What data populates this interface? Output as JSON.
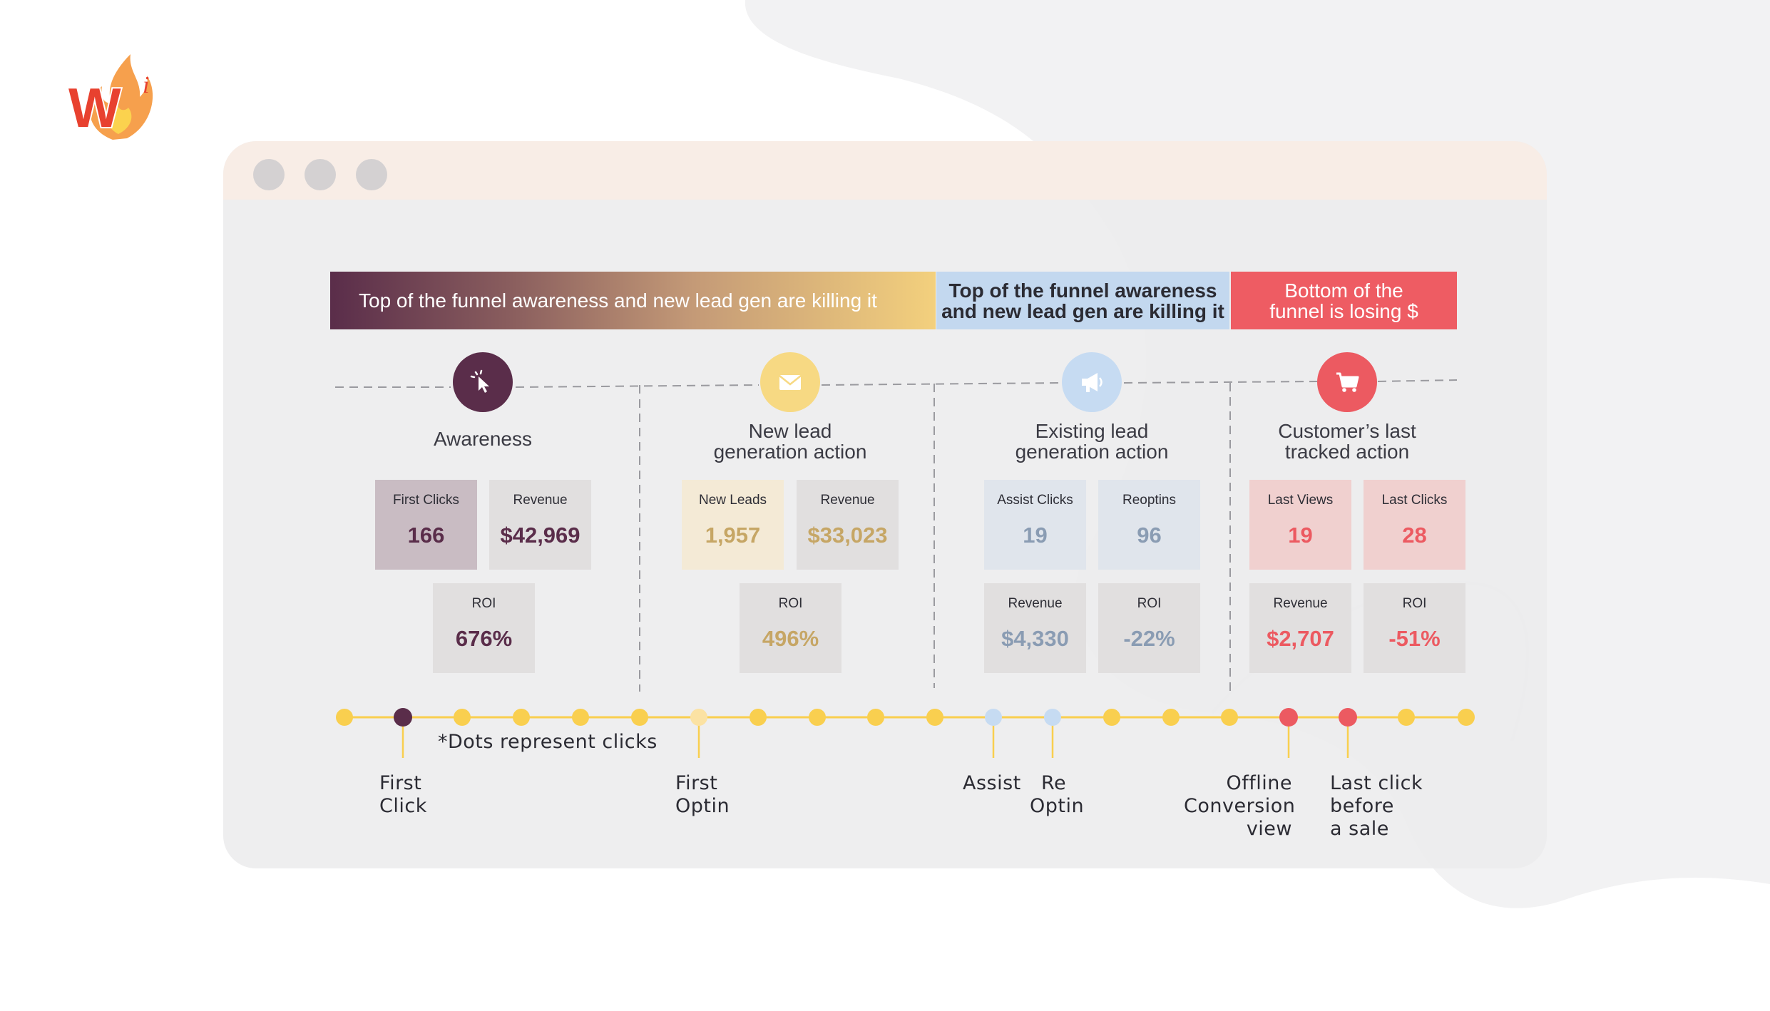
{
  "colors": {
    "awareness": "#5a2d4a",
    "new_lead": "#f7d983",
    "existing_lead": "#c6dbf2",
    "last_action": "#ec5a61",
    "timeline": "#f9cf4f"
  },
  "banners": {
    "left": "Top of the funnel awareness and new lead gen are killing it",
    "middle_line1": "Top of the funnel awareness",
    "middle_line2": "and new lead gen are killing it",
    "right_line1": "Bottom of the",
    "right_line2": "funnel is losing $"
  },
  "stages": [
    {
      "icon": "cursor-click-icon",
      "title_line1": "Awareness",
      "title_line2": "",
      "metrics": [
        {
          "label": "First Clicks",
          "value": "166"
        },
        {
          "label": "Revenue",
          "value": "$42,969"
        },
        {
          "label": "ROI",
          "value": "676%"
        }
      ]
    },
    {
      "icon": "envelope-icon",
      "title_line1": "New lead",
      "title_line2": "generation action",
      "metrics": [
        {
          "label": "New Leads",
          "value": "1,957"
        },
        {
          "label": "Revenue",
          "value": "$33,023"
        },
        {
          "label": "ROI",
          "value": "496%"
        }
      ]
    },
    {
      "icon": "megaphone-icon",
      "title_line1": "Existing lead",
      "title_line2": "generation action",
      "metrics": [
        {
          "label": "Assist Clicks",
          "value": "19"
        },
        {
          "label": "Reoptins",
          "value": "96"
        },
        {
          "label": "Revenue",
          "value": "$4,330"
        },
        {
          "label": "ROI",
          "value": "-22%"
        }
      ]
    },
    {
      "icon": "shopping-cart-icon",
      "title_line1": "Customer’s last",
      "title_line2": "tracked action",
      "metrics": [
        {
          "label": "Last Views",
          "value": "19"
        },
        {
          "label": "Last Clicks",
          "value": "28"
        },
        {
          "label": "Revenue",
          "value": "$2,707"
        },
        {
          "label": "ROI",
          "value": "-51%"
        }
      ]
    }
  ],
  "timeline": {
    "note": "*Dots represent clicks",
    "labels": {
      "first_click_1": "First",
      "first_click_2": "Click",
      "first_optin_1": "First",
      "first_optin_2": "Optin",
      "assist": "Assist",
      "re_optin_1": "Re",
      "re_optin_2": "Optin",
      "offline_1": "Offline",
      "offline_2": "Conversion",
      "offline_3": "view",
      "last_click_1": "Last click",
      "last_click_2": "before",
      "last_click_3": "a sale"
    }
  }
}
